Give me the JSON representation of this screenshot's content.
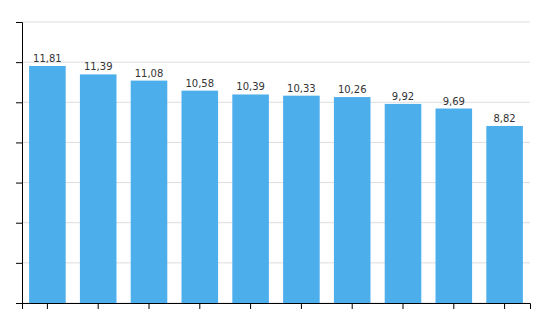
{
  "chart_data": {
    "type": "bar",
    "categories": [
      null,
      null,
      null,
      null,
      null,
      null,
      null,
      null,
      null,
      null
    ],
    "values": [
      11.81,
      11.39,
      11.08,
      10.58,
      10.39,
      10.33,
      10.26,
      9.92,
      9.69,
      8.82
    ],
    "value_labels": [
      "11,81",
      "11,39",
      "11,08",
      "10,58",
      "10,39",
      "10,33",
      "10,26",
      "9,92",
      "9,69",
      "8,82"
    ],
    "data_labels": true,
    "color": "#4DAEEC",
    "ylim": [
      0,
      14
    ],
    "yticks": [
      0,
      2,
      4,
      6,
      8,
      10,
      12,
      14
    ],
    "grid": true,
    "tick_labels": false
  }
}
